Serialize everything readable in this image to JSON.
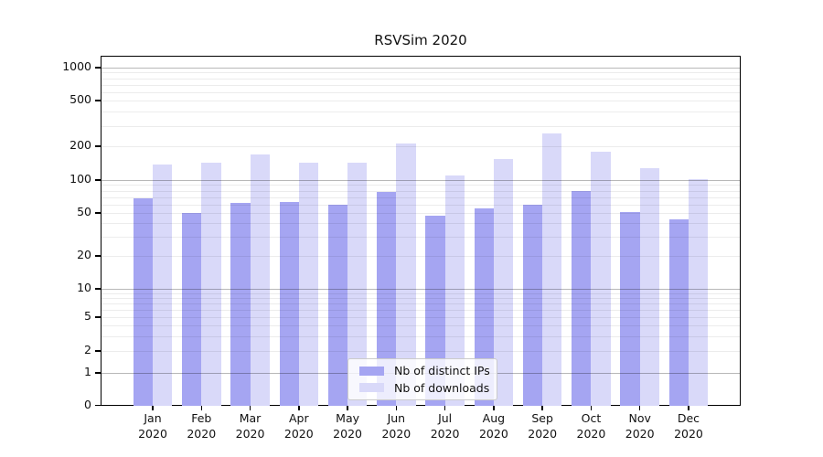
{
  "figure": {
    "title": "RSVSim 2020"
  },
  "chart_data": {
    "type": "bar",
    "title": "RSVSim 2020",
    "categories": [
      "Jan 2020",
      "Feb 2020",
      "Mar 2020",
      "Apr 2020",
      "May 2020",
      "Jun 2020",
      "Jul 2020",
      "Aug 2020",
      "Sep 2020",
      "Oct 2020",
      "Nov 2020",
      "Dec 2020"
    ],
    "series": [
      {
        "name": "Nb of distinct IPs",
        "color": "#a5a5f2",
        "values": [
          68,
          50,
          62,
          63,
          60,
          78,
          47,
          55,
          60,
          79,
          51,
          44
        ]
      },
      {
        "name": "Nb of downloads",
        "color": "#d9d9f9",
        "values": [
          138,
          144,
          169,
          142,
          144,
          213,
          110,
          155,
          260,
          178,
          127,
          102
        ]
      }
    ],
    "yscale": "symlog",
    "yticks": [
      0,
      1,
      2,
      5,
      10,
      20,
      50,
      100,
      200,
      500,
      1000
    ],
    "ylim": [
      0,
      1300
    ],
    "xlabel": "",
    "ylabel": "",
    "grid": true,
    "legend_position": "lower center"
  },
  "colors": {
    "axis": "#000000",
    "grid_major": "#b8b8b8",
    "grid_minor": "#e9e9e9",
    "bar_dark": "#a5a5f2",
    "bar_light": "#d9d9f9",
    "legend_border": "#cbcbcb"
  }
}
